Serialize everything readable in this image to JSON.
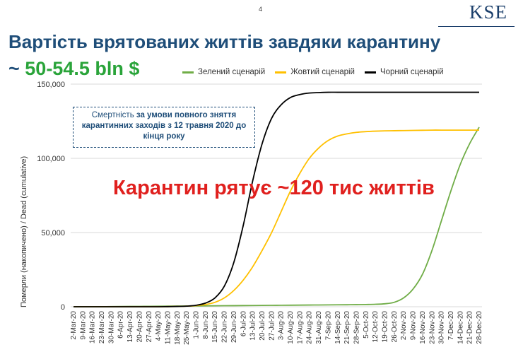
{
  "header": {
    "page_number": "4",
    "logo_text": "KSE",
    "title": "Вартість врятованих життів завдяки карантину",
    "subtitle_tilde": "~ ",
    "subtitle_amount": "50-54.5 bln $"
  },
  "annotation_box": {
    "prefix": "Смертність ",
    "bold_part": "за умови повного зняття карантинних заходів з 12 травня 2020 до кінця року"
  },
  "big_annotation": "Карантин рятує ~120 тис життів",
  "colors": {
    "green": "#70ad47",
    "yellow": "#ffc000",
    "black": "#000000",
    "title": "#1f4e79",
    "subtitle_amount": "#2aa43a",
    "annotation": "#e0201e",
    "grid": "#d9d9d9"
  },
  "chart_data": {
    "type": "line",
    "ylabel": "Померли (накопичено) / Dead (cumulative)",
    "xlabel": "",
    "ylim": [
      0,
      150000
    ],
    "yticks": [
      0,
      50000,
      100000,
      150000
    ],
    "ytick_labels": [
      "0",
      "50,000",
      "100,000",
      "150,000"
    ],
    "grid": "horizontal",
    "legend_position": "top",
    "x": [
      "2-Mar-20",
      "9-Mar-20",
      "16-Mar-20",
      "23-Mar-20",
      "30-Mar-20",
      "6-Apr-20",
      "13-Apr-20",
      "20-Apr-20",
      "27-Apr-20",
      "4-May-20",
      "11-May-20",
      "18-May-20",
      "25-May-20",
      "1-Jun-20",
      "8-Jun-20",
      "15-Jun-20",
      "22-Jun-20",
      "29-Jun-20",
      "6-Jul-20",
      "13-Jul-20",
      "20-Jul-20",
      "27-Jul-20",
      "3-Aug-20",
      "10-Aug-20",
      "17-Aug-20",
      "24-Aug-20",
      "31-Aug-20",
      "7-Sep-20",
      "14-Sep-20",
      "21-Sep-20",
      "28-Sep-20",
      "5-Oct-20",
      "12-Oct-20",
      "19-Oct-20",
      "26-Oct-20",
      "2-Nov-20",
      "9-Nov-20",
      "16-Nov-20",
      "23-Nov-20",
      "30-Nov-20",
      "7-Dec-20",
      "14-Dec-20",
      "21-Dec-20",
      "28-Dec-20"
    ],
    "series": [
      {
        "name": "Зелений сценарій",
        "color": "#70ad47",
        "values": [
          0,
          0,
          0,
          50,
          100,
          150,
          200,
          250,
          300,
          350,
          400,
          450,
          500,
          550,
          600,
          650,
          700,
          750,
          800,
          850,
          900,
          950,
          1000,
          1050,
          1100,
          1150,
          1200,
          1250,
          1300,
          1350,
          1400,
          1500,
          1650,
          2000,
          3000,
          6000,
          12000,
          22000,
          38000,
          58000,
          78000,
          96000,
          110000,
          121000
        ]
      },
      {
        "name": "Жовтий сценарій",
        "color": "#ffc000",
        "values": [
          0,
          0,
          0,
          0,
          0,
          0,
          0,
          0,
          0,
          0,
          100,
          200,
          400,
          800,
          1500,
          3000,
          6000,
          11000,
          18000,
          27000,
          38000,
          50000,
          64000,
          78000,
          90000,
          100000,
          107000,
          112000,
          115000,
          116500,
          117500,
          118000,
          118300,
          118500,
          118600,
          118700,
          118800,
          118900,
          119000,
          119000,
          119000,
          119000,
          119000,
          119000
        ]
      },
      {
        "name": "Чорний сценарій",
        "color": "#000000",
        "values": [
          0,
          0,
          0,
          0,
          0,
          0,
          0,
          0,
          0,
          0,
          100,
          200,
          400,
          1000,
          2500,
          6000,
          14000,
          30000,
          55000,
          85000,
          110000,
          127000,
          136000,
          141000,
          143000,
          144000,
          144300,
          144500,
          144500,
          144500,
          144500,
          144500,
          144500,
          144500,
          144500,
          144500,
          144500,
          144500,
          144500,
          144500,
          144500,
          144500,
          144500,
          144500
        ]
      }
    ]
  }
}
